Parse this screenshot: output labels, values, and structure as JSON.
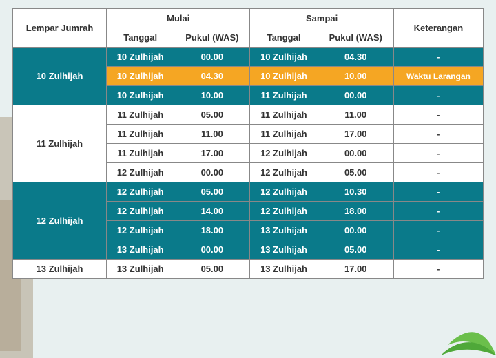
{
  "colors": {
    "teal": "#0a7a8a",
    "orange": "#f5a623",
    "white": "#ffffff",
    "border": "#888888",
    "bg": "#e8f0f0",
    "leaf": "#6bbf4b",
    "sand": "#a8987d"
  },
  "header": {
    "lempar": "Lempar Jumrah",
    "mulai": "Mulai",
    "sampai": "Sampai",
    "keterangan": "Keterangan",
    "tanggal": "Tanggal",
    "pukul": "Pukul (WAS)"
  },
  "groups": [
    {
      "label": "10 Zulhijah",
      "label_style": "teal",
      "rows": [
        {
          "style": "teal",
          "mulai_tgl": "10 Zulhijah",
          "mulai_pkl": "00.00",
          "sampai_tgl": "10 Zulhijah",
          "sampai_pkl": "04.30",
          "ket": "-"
        },
        {
          "style": "orange",
          "mulai_tgl": "10 Zulhijah",
          "mulai_pkl": "04.30",
          "sampai_tgl": "10 Zulhijah",
          "sampai_pkl": "10.00",
          "ket": "Waktu Larangan"
        },
        {
          "style": "teal",
          "mulai_tgl": "10 Zulhijah",
          "mulai_pkl": "10.00",
          "sampai_tgl": "11 Zulhijah",
          "sampai_pkl": "00.00",
          "ket": "-"
        }
      ]
    },
    {
      "label": "11 Zulhijah",
      "label_style": "white",
      "rows": [
        {
          "style": "white",
          "mulai_tgl": "11 Zulhijah",
          "mulai_pkl": "05.00",
          "sampai_tgl": "11 Zulhijah",
          "sampai_pkl": "11.00",
          "ket": "-"
        },
        {
          "style": "white",
          "mulai_tgl": "11 Zulhijah",
          "mulai_pkl": "11.00",
          "sampai_tgl": "11 Zulhijah",
          "sampai_pkl": "17.00",
          "ket": "-"
        },
        {
          "style": "white",
          "mulai_tgl": "11 Zulhijah",
          "mulai_pkl": "17.00",
          "sampai_tgl": "12 Zulhijah",
          "sampai_pkl": "00.00",
          "ket": "-"
        },
        {
          "style": "white",
          "mulai_tgl": "12 Zulhijah",
          "mulai_pkl": "00.00",
          "sampai_tgl": "12 Zulhijah",
          "sampai_pkl": "05.00",
          "ket": "-"
        }
      ]
    },
    {
      "label": "12 Zulhijah",
      "label_style": "teal",
      "rows": [
        {
          "style": "teal",
          "mulai_tgl": "12 Zulhijah",
          "mulai_pkl": "05.00",
          "sampai_tgl": "12 Zulhijah",
          "sampai_pkl": "10.30",
          "ket": "-"
        },
        {
          "style": "teal",
          "mulai_tgl": "12 Zulhijah",
          "mulai_pkl": "14.00",
          "sampai_tgl": "12 Zulhijah",
          "sampai_pkl": "18.00",
          "ket": "-"
        },
        {
          "style": "teal",
          "mulai_tgl": "12 Zulhijah",
          "mulai_pkl": "18.00",
          "sampai_tgl": "13 Zulhijah",
          "sampai_pkl": "00.00",
          "ket": "-"
        },
        {
          "style": "teal",
          "mulai_tgl": "13 Zulhijah",
          "mulai_pkl": "00.00",
          "sampai_tgl": "13 Zulhijah",
          "sampai_pkl": "05.00",
          "ket": "-"
        }
      ]
    },
    {
      "label": "13 Zulhijah",
      "label_style": "white",
      "rows": [
        {
          "style": "white",
          "mulai_tgl": "13 Zulhijah",
          "mulai_pkl": "05.00",
          "sampai_tgl": "13 Zulhijah",
          "sampai_pkl": "17.00",
          "ket": "-"
        }
      ]
    }
  ]
}
